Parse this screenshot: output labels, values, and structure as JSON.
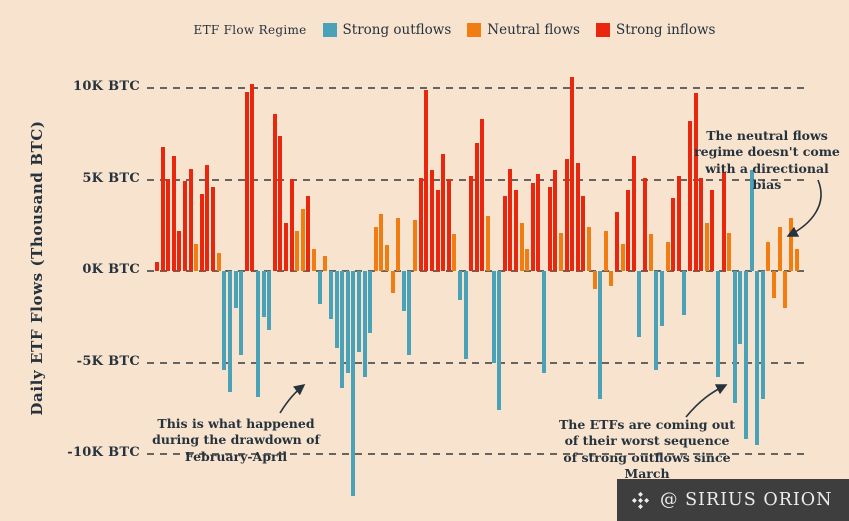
{
  "legend": {
    "title": "ETF Flow Regime",
    "items": [
      {
        "label": "Strong outflows",
        "color": "#4aa2b8",
        "key": "out"
      },
      {
        "label": "Neutral flows",
        "color": "#f07c12",
        "key": "neu"
      },
      {
        "label": "Strong inflows",
        "color": "#e8270e",
        "key": "in"
      }
    ]
  },
  "y_axis": {
    "title": "Daily ETF Flows (Thousand BTC)",
    "ticks": [
      {
        "value": 10,
        "label": "10K BTC"
      },
      {
        "value": 5,
        "label": "5K BTC"
      },
      {
        "value": 0,
        "label": "0K BTC"
      },
      {
        "value": -5,
        "label": "-5K BTC"
      },
      {
        "value": -10,
        "label": "-10K BTC"
      }
    ]
  },
  "annotations": [
    {
      "id": "neutral-bias",
      "text": "The neutral flows regime doesn't come with a directional bias"
    },
    {
      "id": "drawdown",
      "text": "This is what happened during the drawdown of February-April"
    },
    {
      "id": "worst-sequence",
      "text": "The ETFs are coming out of their worst sequence of strong outflows since March"
    }
  ],
  "watermark": {
    "text": "@ SIRIUS ORION"
  },
  "chart_data": {
    "type": "bar",
    "title": "",
    "xlabel": "",
    "ylabel": "Daily ETF Flows (Thousand BTC)",
    "unit": "K BTC",
    "ylim": [
      -12.5,
      11
    ],
    "grid": "dashed horizontal at -10, -5, 0, 5, 10",
    "legend_position": "top-center",
    "regime_colors": {
      "out": "#4aa2b8",
      "neu": "#f07c12",
      "in": "#e8270e"
    },
    "series": [
      {
        "name": "Daily ETF Flows (Thousand BTC), colored by flow regime",
        "values": [
          0.5,
          6.8,
          5.0,
          6.3,
          2.2,
          4.9,
          5.6,
          1.5,
          4.2,
          5.8,
          4.6,
          1.0,
          -5.4,
          -6.6,
          -2.0,
          -4.6,
          9.8,
          10.2,
          -6.9,
          -2.5,
          -3.2,
          8.6,
          7.4,
          2.6,
          5.0,
          2.2,
          3.4,
          4.1,
          1.2,
          -1.8,
          0.8,
          -2.6,
          -4.2,
          -6.4,
          -5.6,
          -12.3,
          -4.4,
          -5.8,
          -3.4,
          2.4,
          3.1,
          1.4,
          -1.2,
          2.9,
          -2.2,
          -4.6,
          2.8,
          5.1,
          9.9,
          5.5,
          4.4,
          6.4,
          5.0,
          2.0,
          -1.6,
          -4.8,
          5.2,
          7.0,
          8.3,
          3.0,
          -5.0,
          -7.6,
          4.1,
          5.6,
          4.4,
          2.6,
          1.2,
          4.8,
          5.3,
          -5.6,
          4.6,
          5.5,
          2.1,
          6.1,
          10.6,
          5.9,
          4.1,
          2.4,
          -1.0,
          -7.0,
          2.2,
          -0.8,
          3.2,
          1.5,
          4.4,
          6.3,
          -3.6,
          5.1,
          2.0,
          -5.4,
          -3.0,
          1.6,
          4.0,
          5.2,
          -2.4,
          8.2,
          9.7,
          5.1,
          2.6,
          4.4,
          -5.8,
          5.4,
          2.1,
          -7.2,
          -4.0,
          -9.2,
          5.5,
          -9.5,
          -7.0,
          1.6,
          -1.5,
          2.4,
          -2.0,
          2.9,
          1.2
        ],
        "regimes": [
          "in",
          "in",
          "in",
          "in",
          "in",
          "in",
          "in",
          "neu",
          "in",
          "in",
          "in",
          "neu",
          "out",
          "out",
          "out",
          "out",
          "in",
          "in",
          "out",
          "out",
          "out",
          "in",
          "in",
          "in",
          "in",
          "neu",
          "neu",
          "in",
          "neu",
          "out",
          "neu",
          "out",
          "out",
          "out",
          "out",
          "out",
          "out",
          "out",
          "out",
          "neu",
          "neu",
          "neu",
          "neu",
          "neu",
          "out",
          "out",
          "neu",
          "in",
          "in",
          "in",
          "in",
          "in",
          "in",
          "neu",
          "out",
          "out",
          "in",
          "in",
          "in",
          "neu",
          "out",
          "out",
          "in",
          "in",
          "in",
          "neu",
          "neu",
          "in",
          "in",
          "out",
          "in",
          "in",
          "neu",
          "in",
          "in",
          "in",
          "in",
          "neu",
          "neu",
          "out",
          "neu",
          "neu",
          "in",
          "neu",
          "in",
          "in",
          "out",
          "in",
          "neu",
          "out",
          "out",
          "neu",
          "in",
          "in",
          "out",
          "in",
          "in",
          "in",
          "neu",
          "in",
          "out",
          "in",
          "neu",
          "out",
          "out",
          "out",
          "out",
          "out",
          "out",
          "neu",
          "neu",
          "neu",
          "neu",
          "neu",
          "neu"
        ]
      }
    ]
  }
}
